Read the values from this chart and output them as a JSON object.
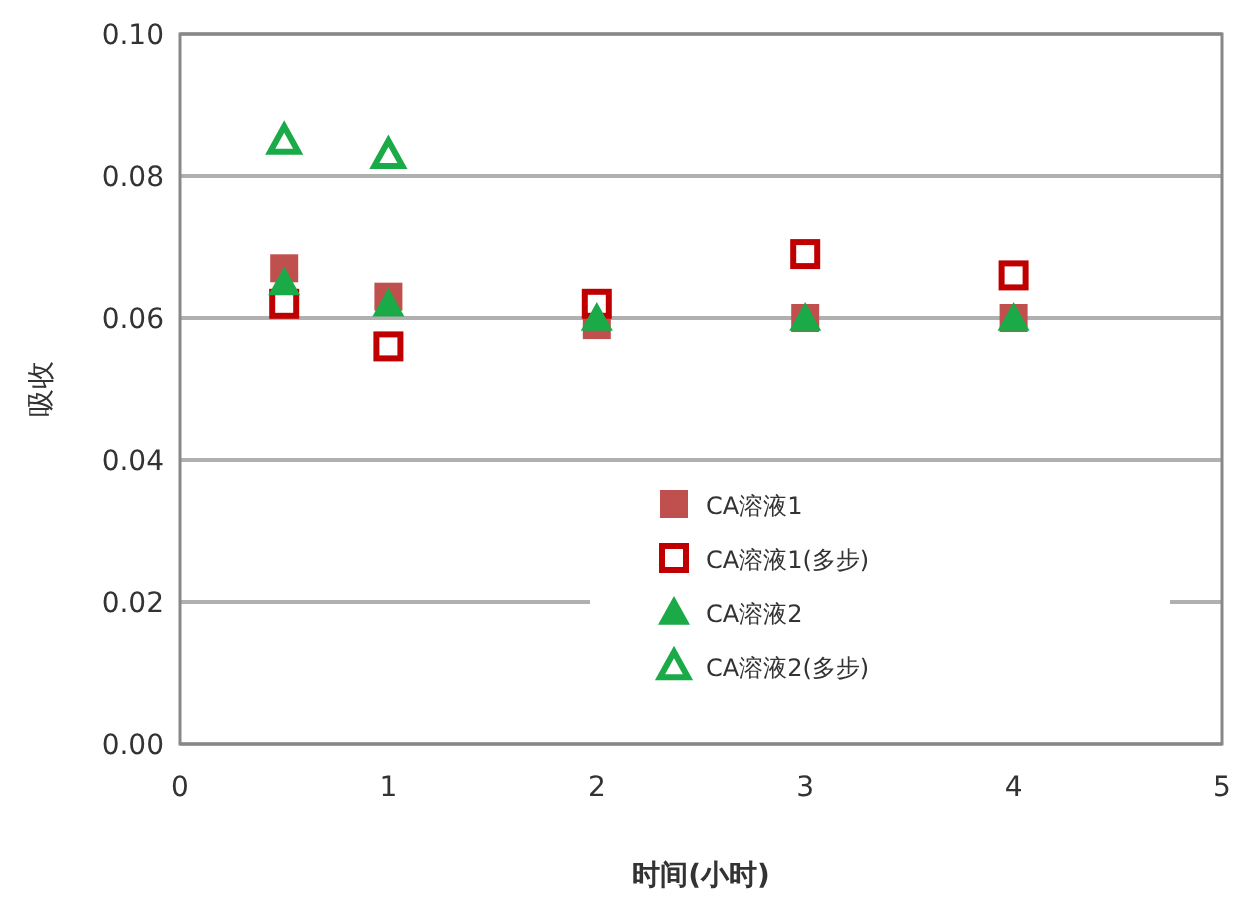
{
  "chart_data": {
    "type": "scatter",
    "xlabel": "时间(小时)",
    "ylabel": "吸收",
    "x": [
      0.5,
      1,
      2,
      3,
      4
    ],
    "xlim": [
      0,
      5
    ],
    "xticks": [
      0,
      1,
      2,
      3,
      4,
      5
    ],
    "ylim": [
      0,
      0.1
    ],
    "yticks": [
      {
        "value": 0,
        "label": "0.00"
      },
      {
        "value": 0.02,
        "label": "0.02"
      },
      {
        "value": 0.04,
        "label": "0.04"
      },
      {
        "value": 0.06,
        "label": "0.06"
      },
      {
        "value": 0.08,
        "label": "0.08"
      },
      {
        "value": 0.1,
        "label": "0.10"
      }
    ],
    "grid": "y",
    "legend": "bottom",
    "series": [
      {
        "name": "CA溶液1",
        "color": "#c0504d",
        "marker": "square",
        "values": [
          0.067,
          0.063,
          0.059,
          0.06,
          0.06
        ]
      },
      {
        "name": "CA溶液1(多步)",
        "color": "#c00000",
        "marker": "square-open",
        "values": [
          0.062,
          0.056,
          0.062,
          0.069,
          0.066
        ]
      },
      {
        "name": "CA溶液2",
        "color": "#1aaa48",
        "marker": "triangle",
        "values": [
          0.065,
          0.062,
          0.06,
          0.06,
          0.06
        ]
      },
      {
        "name": "CA溶液2(多步)",
        "color": "#1aaa48",
        "marker": "triangle-open",
        "values": [
          0.085,
          0.083,
          null,
          null,
          null
        ]
      }
    ]
  }
}
